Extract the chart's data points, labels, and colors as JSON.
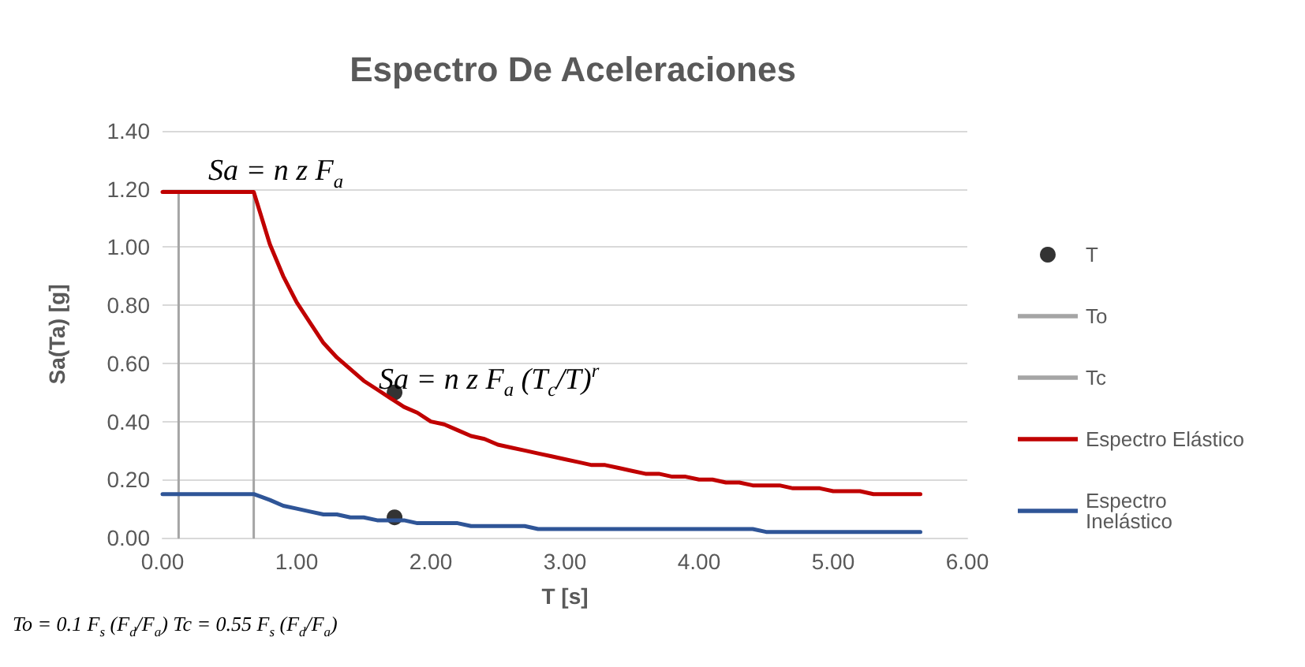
{
  "chart_data": {
    "type": "line",
    "title": "Espectro De Aceleraciones",
    "xlabel": "T [s]",
    "ylabel": "Sa(Ta) [g]",
    "xlim": [
      0,
      6
    ],
    "xticks": [
      {
        "value": 0,
        "label": "0.00"
      },
      {
        "value": 1,
        "label": "1.00"
      },
      {
        "value": 2,
        "label": "2.00"
      },
      {
        "value": 3,
        "label": "3.00"
      },
      {
        "value": 4,
        "label": "4.00"
      },
      {
        "value": 5,
        "label": "5.00"
      },
      {
        "value": 6,
        "label": "6.00"
      }
    ],
    "ylim": [
      0,
      1.4
    ],
    "yticks": [
      {
        "value": 0,
        "label": "0.00"
      },
      {
        "value": 0.2,
        "label": "0.20"
      },
      {
        "value": 0.4,
        "label": "0.40"
      },
      {
        "value": 0.6,
        "label": "0.60"
      },
      {
        "value": 0.8,
        "label": "0.80"
      },
      {
        "value": 1,
        "label": "1.00"
      },
      {
        "value": 1.2,
        "label": "1.20"
      },
      {
        "value": 1.4,
        "label": "1.40"
      }
    ],
    "grid": "y",
    "legend": "right",
    "marker": "none",
    "line_style": "solid",
    "annotations": [
      "Sa = n z F$_{a}$",
      "Sa = n z F$_{a}$ (T$_{c}$/T)$^{r}$",
      "To = 0.1 F$_{s}$ (F$_{d}$/F$_{a}$)   Tc = 0.55 F$_{s}$ (F$_{d}$/F$_{a}$)"
    ],
    "series": [
      {
        "name": "T",
        "type": "scatter",
        "marker": "circle",
        "color": "#000000",
        "x": [
          1.73,
          1.73
        ],
        "values": [
          0.5,
          0.07
        ]
      },
      {
        "name": "To",
        "color": "#a5a5a5",
        "x": [
          0.12,
          0.12
        ],
        "values": [
          0,
          1.19
        ]
      },
      {
        "name": "Tc",
        "color": "#a5a5a5",
        "x": [
          0.68,
          0.68
        ],
        "values": [
          0,
          1.19
        ]
      },
      {
        "name": "Espectro Elástico",
        "color": "#c00000",
        "x": [
          0,
          0.68,
          0.8,
          0.9,
          1.0,
          1.1,
          1.2,
          1.3,
          1.4,
          1.5,
          1.6,
          1.7,
          1.8,
          1.9,
          2.0,
          2.1,
          2.2,
          2.3,
          2.4,
          2.5,
          2.6,
          2.7,
          2.8,
          2.9,
          3.0,
          3.1,
          3.2,
          3.3,
          3.4,
          3.5,
          3.6,
          3.7,
          3.8,
          3.9,
          4.0,
          4.1,
          4.2,
          4.3,
          4.4,
          4.5,
          4.6,
          4.7,
          4.8,
          4.9,
          5.0,
          5.1,
          5.2,
          5.3,
          5.4,
          5.5,
          5.6,
          5.65
        ],
        "values": [
          1.19,
          1.19,
          1.01,
          0.9,
          0.81,
          0.74,
          0.67,
          0.62,
          0.58,
          0.54,
          0.51,
          0.48,
          0.45,
          0.43,
          0.4,
          0.39,
          0.37,
          0.35,
          0.34,
          0.32,
          0.31,
          0.3,
          0.29,
          0.28,
          0.27,
          0.26,
          0.25,
          0.25,
          0.24,
          0.23,
          0.22,
          0.22,
          0.21,
          0.21,
          0.2,
          0.2,
          0.19,
          0.19,
          0.18,
          0.18,
          0.18,
          0.17,
          0.17,
          0.17,
          0.16,
          0.16,
          0.16,
          0.15,
          0.15,
          0.15,
          0.15,
          0.15
        ]
      },
      {
        "name": "Espectro Inelástico",
        "color": "#2f5597",
        "x": [
          0,
          0.68,
          0.8,
          0.9,
          1.0,
          1.1,
          1.2,
          1.3,
          1.4,
          1.5,
          1.6,
          1.7,
          1.8,
          1.9,
          2.0,
          2.1,
          2.2,
          2.3,
          2.4,
          2.5,
          2.6,
          2.7,
          2.8,
          2.9,
          3.0,
          3.1,
          3.2,
          3.3,
          3.4,
          3.5,
          3.6,
          3.7,
          3.8,
          3.9,
          4.0,
          4.1,
          4.2,
          4.3,
          4.4,
          4.5,
          4.6,
          4.7,
          4.8,
          4.9,
          5.0,
          5.1,
          5.2,
          5.3,
          5.4,
          5.5,
          5.6,
          5.65
        ],
        "values": [
          0.15,
          0.15,
          0.13,
          0.11,
          0.1,
          0.09,
          0.08,
          0.08,
          0.07,
          0.07,
          0.06,
          0.06,
          0.06,
          0.05,
          0.05,
          0.05,
          0.05,
          0.04,
          0.04,
          0.04,
          0.04,
          0.04,
          0.03,
          0.03,
          0.03,
          0.03,
          0.03,
          0.03,
          0.03,
          0.03,
          0.03,
          0.03,
          0.03,
          0.03,
          0.03,
          0.03,
          0.03,
          0.03,
          0.03,
          0.02,
          0.02,
          0.02,
          0.02,
          0.02,
          0.02,
          0.02,
          0.02,
          0.02,
          0.02,
          0.02,
          0.02,
          0.02
        ]
      }
    ]
  }
}
